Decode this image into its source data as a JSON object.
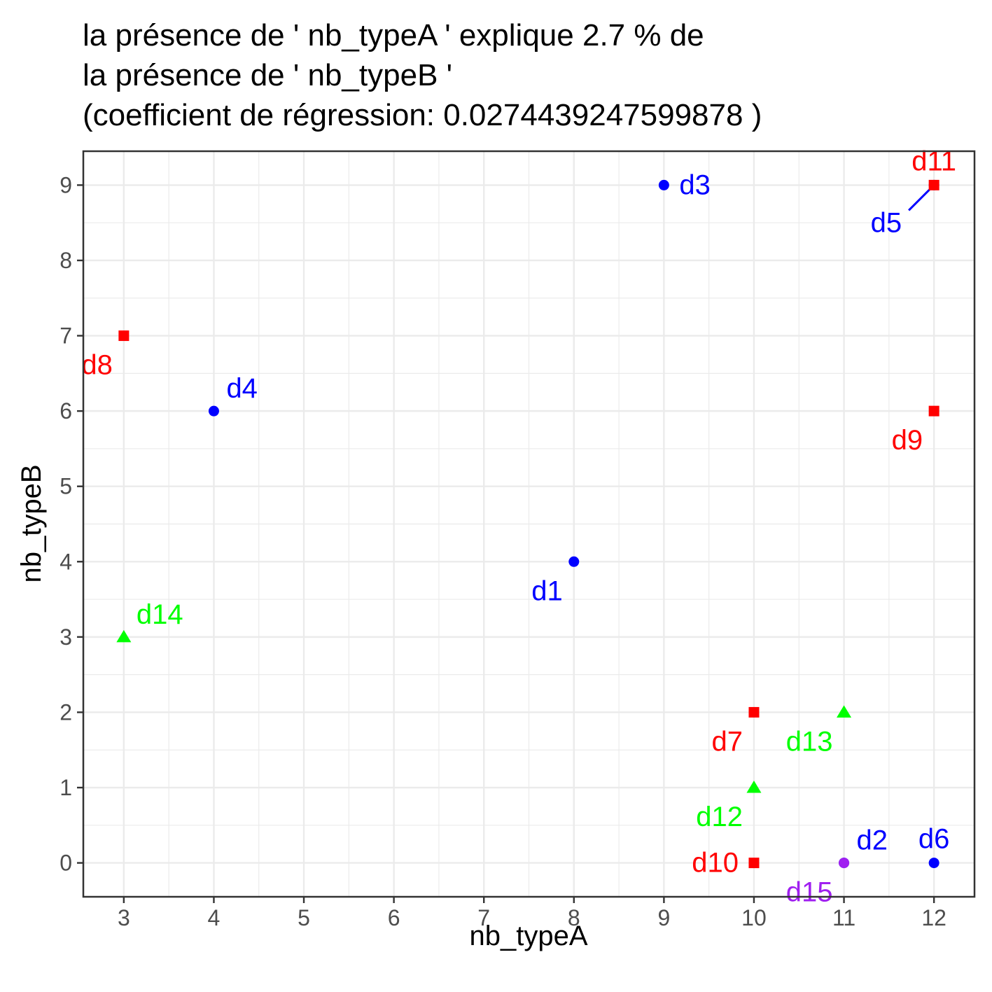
{
  "chart_data": {
    "type": "scatter",
    "title_lines": [
      "la présence de ' nb_typeA ' explique 2.7 % de",
      "la présence de ' nb_typeB '",
      "(coefficient de régression: 0.0274439247599878 )"
    ],
    "xlabel": "nb_typeA",
    "ylabel": "nb_typeB",
    "xlim": [
      2.55,
      12.45
    ],
    "ylim": [
      -0.45,
      9.45
    ],
    "x_ticks": [
      3,
      4,
      5,
      6,
      7,
      8,
      9,
      10,
      11,
      12
    ],
    "y_ticks": [
      0,
      1,
      2,
      3,
      4,
      5,
      6,
      7,
      8,
      9
    ],
    "grid": true,
    "legend": "none",
    "groups": {
      "circle_blue": {
        "shape": "circle",
        "color": "#0000ff"
      },
      "square_red": {
        "shape": "square",
        "color": "#ff0000"
      },
      "triangle_green": {
        "shape": "triangle",
        "color": "#00ff00"
      },
      "circle_purple": {
        "shape": "circle",
        "color": "#a020f0"
      }
    },
    "points": [
      {
        "label": "d1",
        "x": 8,
        "y": 4,
        "group": "circle_blue",
        "label_pos": "bottom-left"
      },
      {
        "label": "d2",
        "x": 11,
        "y": 0,
        "group": "circle_blue",
        "label_pos": "top-right"
      },
      {
        "label": "d3",
        "x": 9,
        "y": 9,
        "group": "circle_blue",
        "label_pos": "right"
      },
      {
        "label": "d4",
        "x": 4,
        "y": 6,
        "group": "circle_blue",
        "label_pos": "top-right"
      },
      {
        "label": "d5",
        "x": 12,
        "y": 9,
        "group": "circle_blue",
        "label_pos": "far-bottom-left",
        "leader": true
      },
      {
        "label": "d6",
        "x": 12,
        "y": 0,
        "group": "circle_blue",
        "label_pos": "top"
      },
      {
        "label": "d7",
        "x": 10,
        "y": 2,
        "group": "square_red",
        "label_pos": "bottom-left"
      },
      {
        "label": "d8",
        "x": 3,
        "y": 7,
        "group": "square_red",
        "label_pos": "bottom-left"
      },
      {
        "label": "d9",
        "x": 12,
        "y": 6,
        "group": "square_red",
        "label_pos": "bottom-left"
      },
      {
        "label": "d10",
        "x": 10,
        "y": 0,
        "group": "square_red",
        "label_pos": "left"
      },
      {
        "label": "d11",
        "x": 12,
        "y": 9,
        "group": "square_red",
        "label_pos": "top"
      },
      {
        "label": "d12",
        "x": 10,
        "y": 1,
        "group": "triangle_green",
        "label_pos": "bottom-left"
      },
      {
        "label": "d13",
        "x": 11,
        "y": 2,
        "group": "triangle_green",
        "label_pos": "bottom-left"
      },
      {
        "label": "d14",
        "x": 3,
        "y": 3,
        "group": "triangle_green",
        "label_pos": "top-right"
      },
      {
        "label": "d15",
        "x": 11,
        "y": 0,
        "group": "circle_purple",
        "label_pos": "bottom-left"
      }
    ]
  }
}
